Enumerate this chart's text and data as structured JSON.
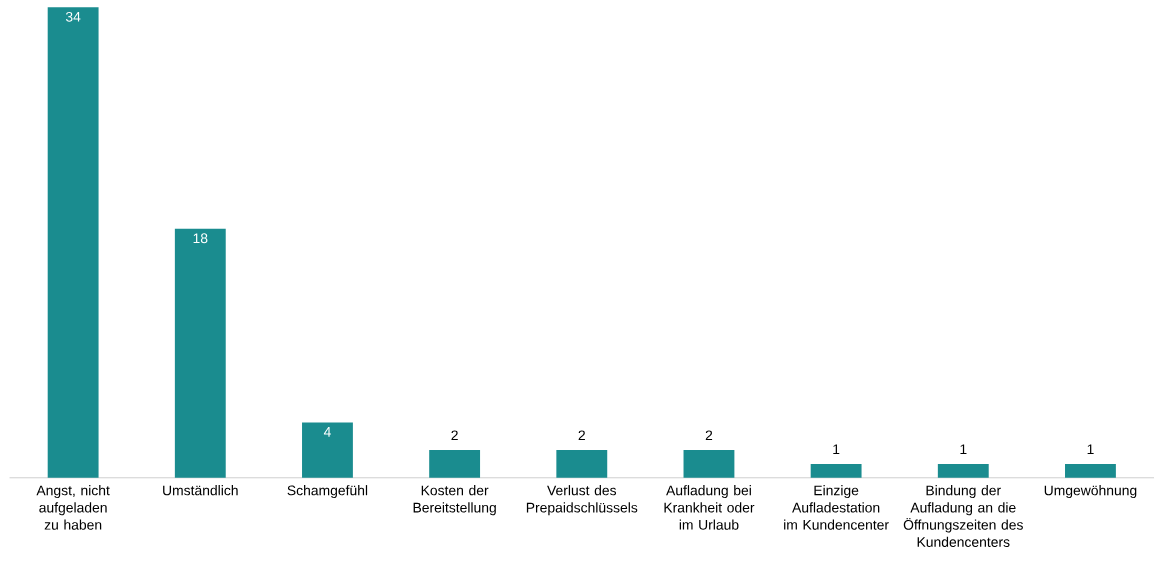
{
  "chart_data": {
    "type": "bar",
    "categories": [
      "Angst, nicht aufgeladen zu haben",
      "Umständlich",
      "Schamgefühl",
      "Kosten der Bereitstellung",
      "Verlust des Prepaidschlüssels",
      "Aufladung bei Krankheit oder im Urlaub",
      "Einzige Aufladestation im Kundencenter",
      "Bindung der Aufladung an die Öffnungszeiten des Kundencenters",
      "Umgewöhnung"
    ],
    "values": [
      34,
      18,
      4,
      2,
      2,
      2,
      1,
      1,
      1
    ],
    "color": "#1a8c8f",
    "data_labels": true
  }
}
